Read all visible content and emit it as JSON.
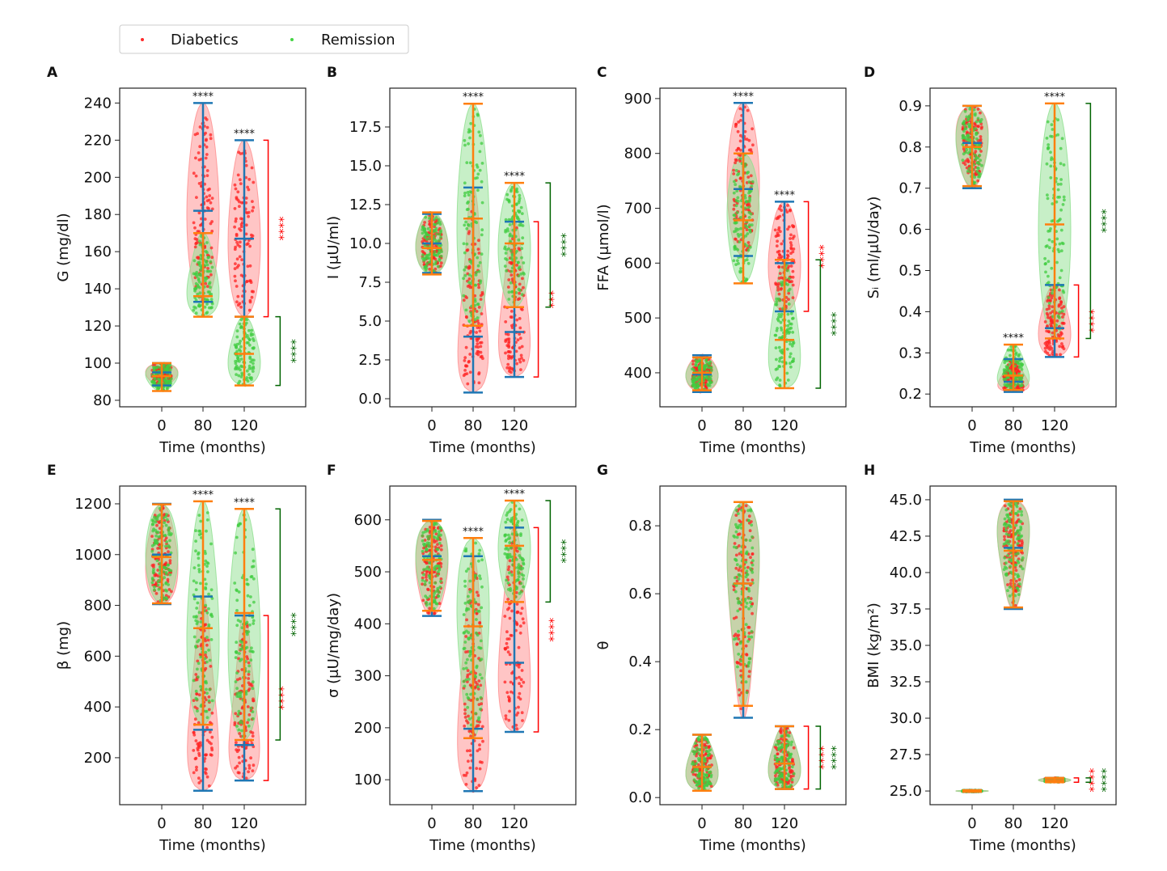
{
  "legend": {
    "placement": "top-left",
    "entries": [
      {
        "label": "Diabetics",
        "color": "#ff2a2a"
      },
      {
        "label": "Remission",
        "color": "#44d444"
      }
    ]
  },
  "colors": {
    "diabetics_fill": "#ff8c8c",
    "diabetics_points": "#ff2020",
    "remission_fill": "#8fe08f",
    "remission_points": "#40cc40",
    "diabetics_lines": "#1f77b4",
    "remission_lines": "#ff7f0e",
    "bracket_diabetics": "#ff0000",
    "bracket_remission": "#006400"
  },
  "chart_data": [
    {
      "panel": "A",
      "type": "violin",
      "xlabel": "Time (months)",
      "ylabel": "G (mg/dl)",
      "categories": [
        "0",
        "80",
        "120"
      ],
      "ylim": [
        76.5,
        248
      ],
      "yticks": [
        "80",
        "100",
        "120",
        "140",
        "160",
        "180",
        "200",
        "220",
        "240"
      ],
      "series": [
        {
          "name": "Diabetics",
          "groups": [
            {
              "min": 88,
              "max": 100,
              "median": 95,
              "peak": 95
            },
            {
              "min": 133,
              "max": 240,
              "median": 182,
              "peak": 180
            },
            {
              "min": 125,
              "max": 220,
              "median": 167,
              "peak": 165
            }
          ]
        },
        {
          "name": "Remission",
          "groups": [
            {
              "min": 85,
              "max": 100,
              "median": 93,
              "peak": 94
            },
            {
              "min": 125,
              "max": 170,
              "median": 136,
              "peak": 137
            },
            {
              "min": 88,
              "max": 125,
              "median": 105,
              "peak": 100
            }
          ]
        }
      ],
      "group_stars": [
        {
          "group": 1,
          "y": 240,
          "label": "****"
        },
        {
          "group": 2,
          "y": 220,
          "label": "****"
        }
      ],
      "brackets": [
        {
          "series": "Diabetics",
          "y1": 125,
          "y2": 220,
          "label": "****"
        },
        {
          "series": "Remission",
          "y1": 88,
          "y2": 125,
          "label": "****"
        }
      ]
    },
    {
      "panel": "B",
      "type": "violin",
      "xlabel": "Time (months)",
      "ylabel": "I (μU/ml)",
      "categories": [
        "0",
        "80",
        "120"
      ],
      "ylim": [
        -0.52,
        20.0
      ],
      "yticks": [
        "0.0",
        "2.5",
        "5.0",
        "7.5",
        "10.0",
        "12.5",
        "15.0",
        "17.5"
      ],
      "series": [
        {
          "name": "Diabetics",
          "groups": [
            {
              "min": 8.1,
              "max": 11.9,
              "median": 10.0,
              "peak": 9.8
            },
            {
              "min": 0.4,
              "max": 13.6,
              "median": 4.0,
              "peak": 1.5
            },
            {
              "min": 1.4,
              "max": 11.4,
              "median": 4.3,
              "peak": 3.0
            }
          ]
        },
        {
          "name": "Remission",
          "groups": [
            {
              "min": 8.0,
              "max": 12.0,
              "median": 9.7,
              "peak": 9.8
            },
            {
              "min": 4.7,
              "max": 19.0,
              "median": 11.6,
              "peak": 11.0
            },
            {
              "min": 5.9,
              "max": 13.9,
              "median": 10.0,
              "peak": 9.7
            }
          ]
        }
      ],
      "group_stars": [
        {
          "group": 1,
          "y": 19.0,
          "label": "****"
        },
        {
          "group": 2,
          "y": 13.9,
          "label": "****"
        }
      ],
      "brackets": [
        {
          "series": "Diabetics",
          "y1": 1.4,
          "y2": 11.4,
          "label": "***"
        },
        {
          "series": "Remission",
          "y1": 5.9,
          "y2": 13.9,
          "label": "****"
        }
      ]
    },
    {
      "panel": "C",
      "type": "violin",
      "xlabel": "Time (months)",
      "ylabel": "FFA (μmol/l)",
      "categories": [
        "0",
        "80",
        "120"
      ],
      "ylim": [
        338,
        919
      ],
      "yticks": [
        "400",
        "500",
        "600",
        "700",
        "800",
        "900"
      ],
      "series": [
        {
          "name": "Diabetics",
          "groups": [
            {
              "min": 365,
              "max": 432,
              "median": 397,
              "peak": 395
            },
            {
              "min": 613,
              "max": 892,
              "median": 735,
              "peak": 745
            },
            {
              "min": 512,
              "max": 712,
              "median": 600,
              "peak": 595
            }
          ]
        },
        {
          "name": "Remission",
          "groups": [
            {
              "min": 368,
              "max": 428,
              "median": 400,
              "peak": 395
            },
            {
              "min": 563,
              "max": 800,
              "median": 678,
              "peak": 690
            },
            {
              "min": 372,
              "max": 606,
              "median": 460,
              "peak": 420
            }
          ]
        }
      ],
      "group_stars": [
        {
          "group": 1,
          "y": 892,
          "label": "****"
        },
        {
          "group": 2,
          "y": 712,
          "label": "****"
        }
      ],
      "brackets": [
        {
          "series": "Diabetics",
          "y1": 512,
          "y2": 712,
          "label": "****"
        },
        {
          "series": "Remission",
          "y1": 372,
          "y2": 606,
          "label": "****"
        }
      ]
    },
    {
      "panel": "D",
      "type": "violin",
      "xlabel": "Time (months)",
      "ylabel": "Sᵢ (ml/μU/day)",
      "categories": [
        "0",
        "80",
        "120"
      ],
      "ylim": [
        0.169,
        0.943
      ],
      "yticks": [
        "0.2",
        "0.3",
        "0.4",
        "0.5",
        "0.6",
        "0.7",
        "0.8",
        "0.9"
      ],
      "series": [
        {
          "name": "Diabetics",
          "groups": [
            {
              "min": 0.7,
              "max": 0.9,
              "median": 0.81,
              "peak": 0.83
            },
            {
              "min": 0.205,
              "max": 0.285,
              "median": 0.23,
              "peak": 0.215
            },
            {
              "min": 0.29,
              "max": 0.465,
              "median": 0.36,
              "peak": 0.345
            }
          ]
        },
        {
          "name": "Remission",
          "groups": [
            {
              "min": 0.705,
              "max": 0.9,
              "median": 0.8,
              "peak": 0.82
            },
            {
              "min": 0.21,
              "max": 0.32,
              "median": 0.245,
              "peak": 0.235
            },
            {
              "min": 0.335,
              "max": 0.906,
              "median": 0.612,
              "peak": 0.6
            }
          ]
        }
      ],
      "group_stars": [
        {
          "group": 1,
          "y": 0.32,
          "label": "****"
        },
        {
          "group": 2,
          "y": 0.906,
          "label": "****"
        }
      ],
      "brackets": [
        {
          "series": "Diabetics",
          "y1": 0.29,
          "y2": 0.465,
          "label": "****"
        },
        {
          "series": "Remission",
          "y1": 0.335,
          "y2": 0.906,
          "label": "****"
        }
      ]
    },
    {
      "panel": "E",
      "type": "violin",
      "xlabel": "Time (months)",
      "ylabel": "β (mg)",
      "categories": [
        "0",
        "80",
        "120"
      ],
      "ylim": [
        15,
        1270
      ],
      "yticks": [
        "200",
        "400",
        "600",
        "800",
        "1000",
        "1200"
      ],
      "series": [
        {
          "name": "Diabetics",
          "groups": [
            {
              "min": 805,
              "max": 1200,
              "median": 1000,
              "peak": 950
            },
            {
              "min": 70,
              "max": 835,
              "median": 310,
              "peak": 170
            },
            {
              "min": 110,
              "max": 760,
              "median": 250,
              "peak": 170
            }
          ]
        },
        {
          "name": "Remission",
          "groups": [
            {
              "min": 808,
              "max": 1198,
              "median": 990,
              "peak": 1000
            },
            {
              "min": 330,
              "max": 1210,
              "median": 710,
              "peak": 660
            },
            {
              "min": 270,
              "max": 1180,
              "median": 770,
              "peak": 650
            }
          ]
        }
      ],
      "group_stars": [
        {
          "group": 1,
          "y": 1210,
          "label": "****"
        },
        {
          "group": 2,
          "y": 1180,
          "label": "****"
        }
      ],
      "brackets": [
        {
          "series": "Diabetics",
          "y1": 110,
          "y2": 760,
          "label": "****"
        },
        {
          "series": "Remission",
          "y1": 270,
          "y2": 1180,
          "label": "****"
        }
      ]
    },
    {
      "panel": "F",
      "type": "violin",
      "xlabel": "Time (months)",
      "ylabel": "σ (μU/mg/day)",
      "categories": [
        "0",
        "80",
        "120"
      ],
      "ylim": [
        52,
        665
      ],
      "yticks": [
        "100",
        "200",
        "300",
        "400",
        "500",
        "600"
      ],
      "series": [
        {
          "name": "Diabetics",
          "groups": [
            {
              "min": 415,
              "max": 600,
              "median": 530,
              "peak": 520
            },
            {
              "min": 78,
              "max": 530,
              "median": 198,
              "peak": 140
            },
            {
              "min": 192,
              "max": 585,
              "median": 325,
              "peak": 280
            }
          ]
        },
        {
          "name": "Remission",
          "groups": [
            {
              "min": 425,
              "max": 598,
              "median": 523,
              "peak": 530
            },
            {
              "min": 180,
              "max": 565,
              "median": 395,
              "peak": 430
            },
            {
              "min": 442,
              "max": 637,
              "median": 550,
              "peak": 545
            }
          ]
        }
      ],
      "group_stars": [
        {
          "group": 1,
          "y": 565,
          "label": "****"
        },
        {
          "group": 2,
          "y": 637,
          "label": "****"
        }
      ],
      "brackets": [
        {
          "series": "Diabetics",
          "y1": 192,
          "y2": 585,
          "label": "****"
        },
        {
          "series": "Remission",
          "y1": 442,
          "y2": 637,
          "label": "****"
        }
      ]
    },
    {
      "panel": "G",
      "type": "violin",
      "xlabel": "Time (months)",
      "ylabel": "θ",
      "categories": [
        "0",
        "80",
        "120"
      ],
      "ylim": [
        -0.021,
        0.917
      ],
      "yticks": [
        "0.0",
        "0.2",
        "0.4",
        "0.6",
        "0.8"
      ],
      "series": [
        {
          "name": "Diabetics",
          "groups": [
            {
              "min": 0.02,
              "max": 0.185,
              "median": 0.09,
              "peak": 0.07
            },
            {
              "min": 0.235,
              "max": 0.87,
              "median": 0.63,
              "peak": 0.72
            },
            {
              "min": 0.025,
              "max": 0.21,
              "median": 0.1,
              "peak": 0.08
            }
          ]
        },
        {
          "name": "Remission",
          "groups": [
            {
              "min": 0.02,
              "max": 0.185,
              "median": 0.09,
              "peak": 0.07
            },
            {
              "min": 0.27,
              "max": 0.87,
              "median": 0.63,
              "peak": 0.72
            },
            {
              "min": 0.025,
              "max": 0.21,
              "median": 0.1,
              "peak": 0.08
            }
          ]
        }
      ],
      "group_stars": [],
      "brackets": [
        {
          "series": "Diabetics",
          "y1": 0.025,
          "y2": 0.21,
          "label": "****"
        },
        {
          "series": "Remission",
          "y1": 0.025,
          "y2": 0.21,
          "label": "****"
        }
      ]
    },
    {
      "panel": "H",
      "type": "violin",
      "xlabel": "Time (months)",
      "ylabel": "BMI (kg/m²)",
      "categories": [
        "0",
        "80",
        "120"
      ],
      "ylim": [
        24.06,
        45.94
      ],
      "yticks": [
        "25.0",
        "27.5",
        "30.0",
        "32.5",
        "35.0",
        "37.5",
        "40.0",
        "42.5",
        "45.0"
      ],
      "series": [
        {
          "name": "Diabetics",
          "groups": [
            {
              "min": 24.95,
              "max": 25.05,
              "median": 25.0,
              "peak": 25.0
            },
            {
              "min": 37.5,
              "max": 45.0,
              "median": 41.7,
              "peak": 43.0
            },
            {
              "min": 25.6,
              "max": 25.9,
              "median": 25.75,
              "peak": 25.75
            }
          ]
        },
        {
          "name": "Remission",
          "groups": [
            {
              "min": 24.95,
              "max": 25.05,
              "median": 25.0,
              "peak": 25.0
            },
            {
              "min": 37.6,
              "max": 44.9,
              "median": 41.5,
              "peak": 43.0
            },
            {
              "min": 25.6,
              "max": 25.9,
              "median": 25.75,
              "peak": 25.75
            }
          ]
        }
      ],
      "group_stars": [],
      "brackets": [
        {
          "series": "Diabetics",
          "y1": 25.6,
          "y2": 25.9,
          "label": "****"
        },
        {
          "series": "Remission",
          "y1": 25.6,
          "y2": 25.9,
          "label": "****"
        }
      ]
    }
  ]
}
